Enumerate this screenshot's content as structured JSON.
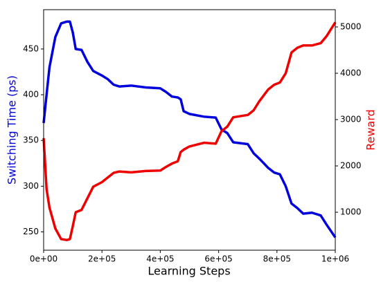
{
  "chart_data": {
    "type": "line",
    "xlabel": "Learning Steps",
    "ylabel": "Switching Time (ps)",
    "y2label": "Reward",
    "x": [
      0,
      10000,
      20000,
      40000,
      60000,
      80000,
      90000,
      100000,
      110000,
      130000,
      150000,
      170000,
      200000,
      220000,
      240000,
      260000,
      300000,
      350000,
      400000,
      420000,
      440000,
      460000,
      470000,
      480000,
      500000,
      550000,
      590000,
      610000,
      630000,
      650000,
      700000,
      720000,
      740000,
      770000,
      790000,
      810000,
      830000,
      850000,
      870000,
      890000,
      920000,
      950000,
      970000,
      1000000
    ],
    "series": [
      {
        "name": "Switching Time (ps)",
        "color": "#0000dd",
        "axis": "y",
        "values": [
          369,
          400,
          430,
          463,
          478,
          480,
          480,
          468,
          450,
          449,
          436,
          426,
          421,
          417,
          411,
          409,
          410,
          408,
          407,
          403,
          398,
          397,
          395,
          382,
          379,
          376,
          375,
          362,
          358,
          348,
          346,
          336,
          330,
          320,
          315,
          313,
          300,
          281,
          276,
          270,
          271,
          268,
          258,
          244
        ]
      },
      {
        "name": "Reward",
        "color": "#ee0000",
        "axis": "y2",
        "values": [
          2600,
          1500,
          1100,
          650,
          420,
          400,
          420,
          700,
          1000,
          1050,
          1300,
          1550,
          1650,
          1750,
          1850,
          1880,
          1860,
          1890,
          1900,
          1980,
          2050,
          2100,
          2300,
          2350,
          2420,
          2500,
          2480,
          2750,
          2850,
          3050,
          3100,
          3200,
          3400,
          3650,
          3750,
          3800,
          4000,
          4450,
          4550,
          4600,
          4600,
          4650,
          4800,
          5100
        ]
      }
    ],
    "xlim": [
      0,
      1000000
    ],
    "xticks": [
      {
        "value": 0,
        "label": "0e+00"
      },
      {
        "value": 200000,
        "label": "2e+05"
      },
      {
        "value": 400000,
        "label": "4e+05"
      },
      {
        "value": 600000,
        "label": "6e+05"
      },
      {
        "value": 800000,
        "label": "8e+05"
      },
      {
        "value": 1000000,
        "label": "1e+06"
      }
    ],
    "ylim": [
      230,
      493
    ],
    "yticks": [
      250,
      300,
      350,
      400,
      450
    ],
    "y2lim": [
      180,
      5373
    ],
    "y2ticks": [
      1000,
      2000,
      3000,
      4000,
      5000
    ]
  }
}
